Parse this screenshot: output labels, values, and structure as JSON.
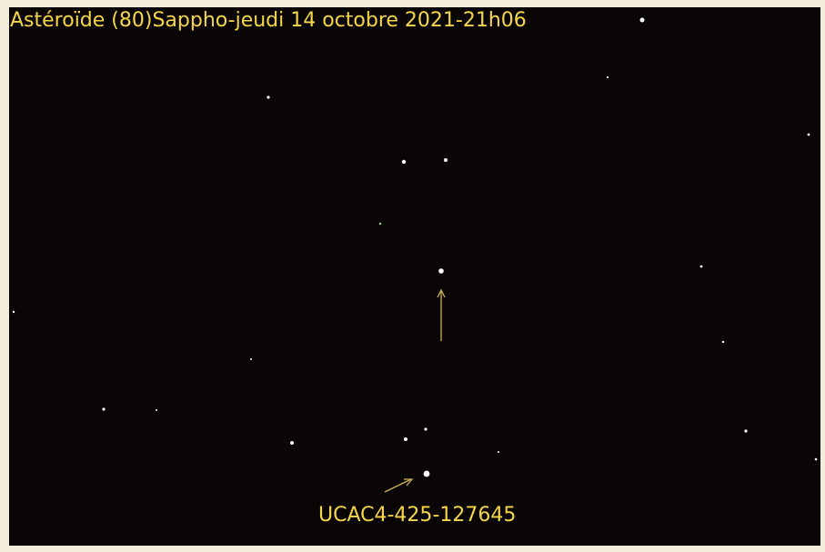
{
  "title": "Astéroïde (80)Sappho-jeudi 14 octobre 2021-21h06",
  "label": "UCAC4-425-127645"
}
